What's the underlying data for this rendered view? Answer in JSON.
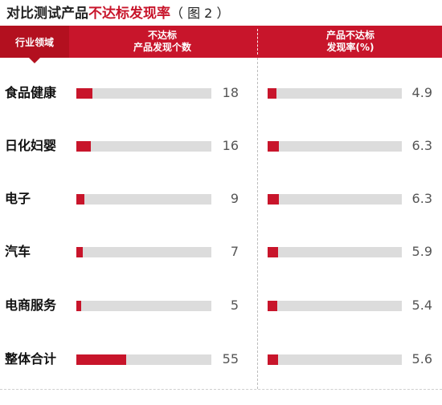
{
  "title": {
    "prefix": "对比测试产品",
    "highlight": "不达标发现率",
    "suffix": "（ 图 2 ）"
  },
  "header": {
    "category": "行业领域",
    "col_a": "不达标\n产品发现个数",
    "col_b": "产品不达标\n发现率(%)"
  },
  "colors": {
    "accent": "#c8152b",
    "track": "#dcdcdc"
  },
  "chart_data": {
    "type": "bar",
    "categories": [
      "食品健康",
      "日化妇婴",
      "电子",
      "汽车",
      "电商服务",
      "整体合计"
    ],
    "series": [
      {
        "name": "不达标产品发现个数",
        "values": [
          18,
          16,
          9,
          7,
          5,
          55
        ],
        "value_labels": [
          "18",
          "16",
          "9",
          "7",
          "5",
          "55"
        ],
        "xlim": [
          0,
          150
        ]
      },
      {
        "name": "产品不达标发现率(%)",
        "values": [
          4.9,
          6.3,
          6.3,
          5.9,
          5.4,
          5.6
        ],
        "value_labels": [
          "4.9",
          "6.3",
          "6.3",
          "5.9",
          "5.4",
          "5.6"
        ],
        "xlim": [
          0,
          75
        ]
      }
    ],
    "orientation": "horizontal",
    "grid": false
  }
}
